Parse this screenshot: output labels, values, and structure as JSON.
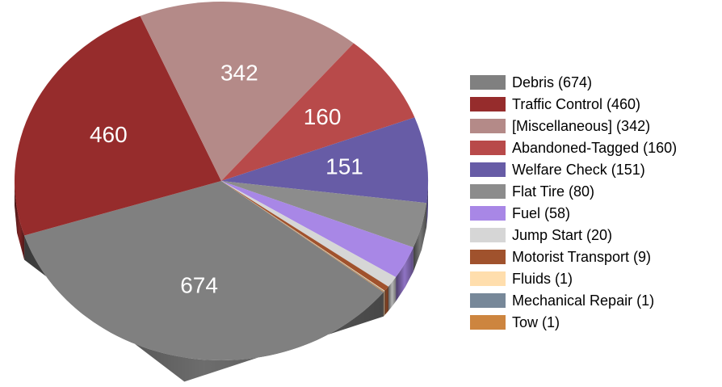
{
  "chart_data": {
    "type": "pie",
    "categories": [
      "Debris (674)",
      "Traffic Control (460)",
      "[Miscellaneous] (342)",
      "Abandoned-Tagged (160)",
      "Welfare Check (151)",
      "Flat Tire (80)",
      "Fuel (58)",
      "Jump Start (20)",
      "Motorist Transport (9)",
      "Fluids (1)",
      "Mechanical Repair (1)",
      "Tow (1)"
    ],
    "values": [
      674,
      460,
      342,
      160,
      151,
      80,
      58,
      20,
      9,
      1,
      1,
      1
    ],
    "colors": [
      "#808080",
      "#962c2c",
      "#b48a88",
      "#b84a4a",
      "#675ca6",
      "#8c8c8c",
      "#a887e6",
      "#d6d6d6",
      "#a0522d",
      "#ffdead",
      "#778899",
      "#cd853f"
    ],
    "legend": "right"
  }
}
